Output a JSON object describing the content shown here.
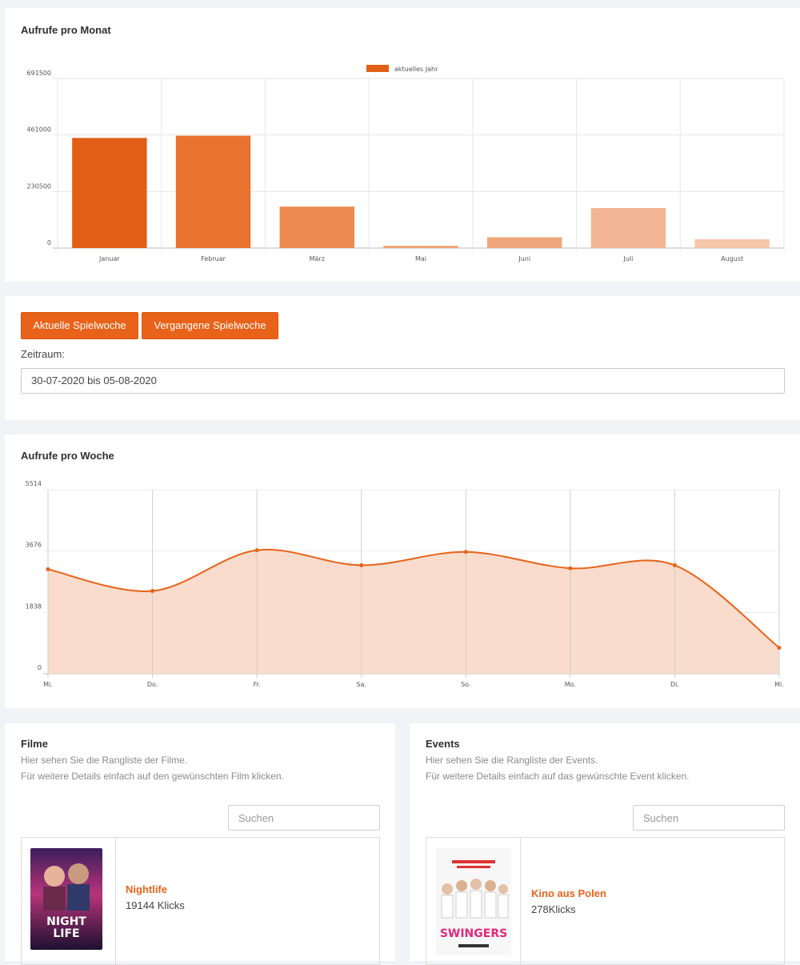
{
  "monthly": {
    "title": "Aufrufe pro Monat",
    "chart_data": {
      "type": "bar",
      "title": "Aufrufe pro Monat",
      "legend": "aktuelles Jahr",
      "legend_position": "top-center",
      "categories": [
        "Januar",
        "Februar",
        "März",
        "Mai",
        "Juni",
        "Juli",
        "August"
      ],
      "values": [
        449000,
        458000,
        169000,
        9000,
        44000,
        163000,
        36000
      ],
      "yticks": [
        0,
        230500,
        461000,
        691500
      ],
      "ylim": [
        0,
        691500
      ],
      "colors": [
        "#e15f16",
        "#e8732f",
        "#ec8a52",
        "#f0a071",
        "#f0a67b",
        "#f4b594",
        "#f6c7aa"
      ],
      "grid": true
    }
  },
  "period": {
    "btn_current": "Aktuelle Spielwoche",
    "btn_past": "Vergangene Spielwoche",
    "label": "Zeitraum:",
    "value": "30-07-2020 bis 05-08-2020"
  },
  "weekly": {
    "title": "Aufrufe pro Woche",
    "chart_data": {
      "type": "area",
      "title": "Aufrufe pro Woche",
      "categories": [
        "Mi.",
        "Do.",
        "Fr.",
        "Sa.",
        "So.",
        "Mo.",
        "Di.",
        "Mi."
      ],
      "values": [
        3130,
        2480,
        3700,
        3250,
        3650,
        3160,
        3250,
        780
      ],
      "yticks": [
        0,
        1838,
        3676,
        5514
      ],
      "ylim": [
        0,
        5514
      ],
      "line_color": "#e8621a",
      "fill_color": "#f9dccb",
      "grid": true
    }
  },
  "films": {
    "title": "Filme",
    "desc1": "Hier sehen Sie die Rangliste der Filme.",
    "desc2": "Für weitere Details einfach auf den gewünschten Film klicken.",
    "search_placeholder": "Suchen",
    "item": {
      "title": "Nightlife",
      "clicks": "19144 Klicks",
      "poster_text": "NIGHT LIFE"
    }
  },
  "events": {
    "title": "Events",
    "desc1": "Hier sehen Sie die Rangliste der Events.",
    "desc2": "Für weitere Details einfach auf das gewünschte Event klicken.",
    "search_placeholder": "Suchen",
    "item": {
      "title": "Kino aus Polen",
      "clicks": "278Klicks",
      "poster_text": "SWINGERS"
    }
  }
}
